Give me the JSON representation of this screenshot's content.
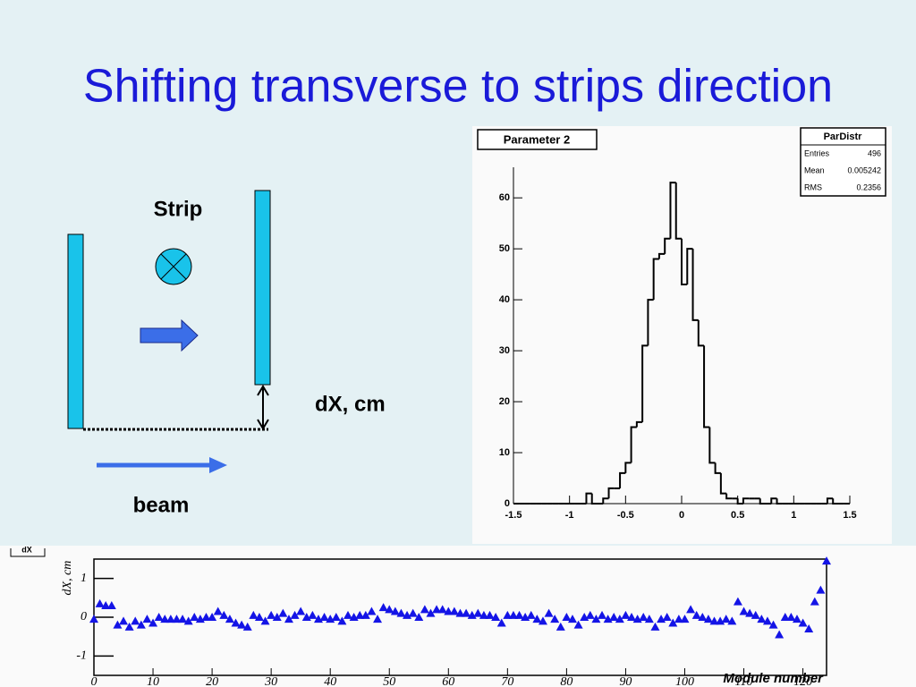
{
  "title": "Shifting transverse to strips direction",
  "diagram": {
    "strip_label": "Strip",
    "dx_label": "dX, cm",
    "beam_label": "beam"
  },
  "chart_data": [
    {
      "type": "histogram",
      "title": "Parameter 2",
      "stats": {
        "title": "ParDistr",
        "rows": [
          {
            "label": "Entries",
            "value": 496
          },
          {
            "label": "Mean",
            "value": 0.005242
          },
          {
            "label": "RMS",
            "value": 0.2356
          }
        ]
      },
      "bins": [
        -1.5,
        -1.45,
        -1.4,
        -1.35,
        -1.3,
        -1.25,
        -1.2,
        -1.15,
        -1.1,
        -1.05,
        -1,
        -0.95,
        -0.9,
        -0.85,
        -0.8,
        -0.75,
        -0.7,
        -0.65,
        -0.6,
        -0.55,
        -0.5,
        -0.45,
        -0.4,
        -0.35,
        -0.3,
        -0.25,
        -0.2,
        -0.15,
        -0.1,
        -0.05,
        0,
        0.05,
        0.1,
        0.15,
        0.2,
        0.25,
        0.3,
        0.35,
        0.4,
        0.45,
        0.5,
        0.55,
        0.6,
        0.65,
        0.7,
        0.75,
        0.8,
        0.85,
        0.9,
        0.95,
        1,
        1.05,
        1.1,
        1.15,
        1.2,
        1.25,
        1.3,
        1.35,
        1.4,
        1.45,
        1.5
      ],
      "values": [
        0,
        0,
        0,
        0,
        0,
        0,
        0,
        0,
        0,
        0,
        0,
        0,
        0,
        2,
        0,
        0,
        1,
        3,
        3,
        6,
        8,
        15,
        16,
        31,
        40,
        48,
        49,
        52,
        63,
        52,
        43,
        50,
        36,
        31,
        15,
        8,
        6,
        2,
        1,
        1,
        0,
        1,
        1,
        1,
        0,
        0,
        1,
        0,
        0,
        0,
        0,
        0,
        0,
        0,
        0,
        0,
        1,
        0,
        0,
        0
      ],
      "color": "#000000",
      "xlim": [
        -1.5,
        1.5
      ],
      "xticks": [
        -1.5,
        -1,
        -0.5,
        0,
        0.5,
        1,
        1.5
      ],
      "ylim": [
        0,
        66
      ],
      "yticks": [
        0,
        10,
        20,
        30,
        40,
        50,
        60
      ]
    },
    {
      "type": "scatter",
      "title": "dX",
      "y_label": "dX, cm",
      "x_label": "Module number",
      "x": [
        0,
        1,
        2,
        3,
        4,
        5,
        6,
        7,
        8,
        9,
        10,
        11,
        12,
        13,
        14,
        15,
        16,
        17,
        18,
        19,
        20,
        21,
        22,
        23,
        24,
        25,
        26,
        27,
        28,
        29,
        30,
        31,
        32,
        33,
        34,
        35,
        36,
        37,
        38,
        39,
        40,
        41,
        42,
        43,
        44,
        45,
        46,
        47,
        48,
        49,
        50,
        51,
        52,
        53,
        54,
        55,
        56,
        57,
        58,
        59,
        60,
        61,
        62,
        63,
        64,
        65,
        66,
        67,
        68,
        69,
        70,
        71,
        72,
        73,
        74,
        75,
        76,
        77,
        78,
        79,
        80,
        81,
        82,
        83,
        84,
        85,
        86,
        87,
        88,
        89,
        90,
        91,
        92,
        93,
        94,
        95,
        96,
        97,
        98,
        99,
        100,
        101,
        102,
        103,
        104,
        105,
        106,
        107,
        108,
        109,
        110,
        111,
        112,
        113,
        114,
        115,
        116,
        117,
        118,
        119,
        120,
        121,
        122,
        123,
        124
      ],
      "values": [
        -0.05,
        0.35,
        0.3,
        0.3,
        -0.2,
        -0.1,
        -0.25,
        -0.1,
        -0.2,
        -0.05,
        -0.15,
        0,
        -0.05,
        -0.05,
        -0.05,
        -0.05,
        -0.1,
        0,
        -0.05,
        0,
        0,
        0.15,
        0.05,
        -0.05,
        -0.15,
        -0.2,
        -0.25,
        0.05,
        0,
        -0.1,
        0.05,
        0,
        0.1,
        -0.05,
        0.05,
        0.15,
        0,
        0.05,
        -0.05,
        0,
        -0.05,
        0,
        -0.1,
        0.05,
        0,
        0.05,
        0.05,
        0.15,
        -0.05,
        0.25,
        0.2,
        0.15,
        0.1,
        0.05,
        0.1,
        0,
        0.2,
        0.1,
        0.2,
        0.2,
        0.15,
        0.15,
        0.1,
        0.1,
        0.05,
        0.1,
        0.05,
        0.05,
        0,
        -0.15,
        0.05,
        0.05,
        0.05,
        0,
        0.05,
        -0.05,
        -0.1,
        0.1,
        -0.05,
        -0.25,
        0,
        -0.05,
        -0.2,
        0,
        0.05,
        -0.05,
        0.05,
        -0.05,
        0,
        -0.05,
        0.05,
        0,
        -0.05,
        0,
        -0.05,
        -0.25,
        -0.05,
        0,
        -0.15,
        -0.05,
        -0.05,
        0.2,
        0.05,
        0,
        -0.05,
        -0.1,
        -0.1,
        -0.05,
        -0.1,
        0.4,
        0.15,
        0.1,
        0.05,
        -0.05,
        -0.1,
        -0.2,
        -0.45,
        0,
        0,
        -0.05,
        -0.15,
        -0.3,
        0.4,
        0.7,
        1.45
      ],
      "color": "#1414e6",
      "xlim": [
        0,
        124
      ],
      "xticks": [
        0,
        10,
        20,
        30,
        40,
        50,
        60,
        70,
        80,
        90,
        100,
        110,
        120
      ],
      "ylim": [
        -1.5,
        1.5
      ],
      "yticks": [
        -1,
        0,
        1
      ]
    }
  ]
}
